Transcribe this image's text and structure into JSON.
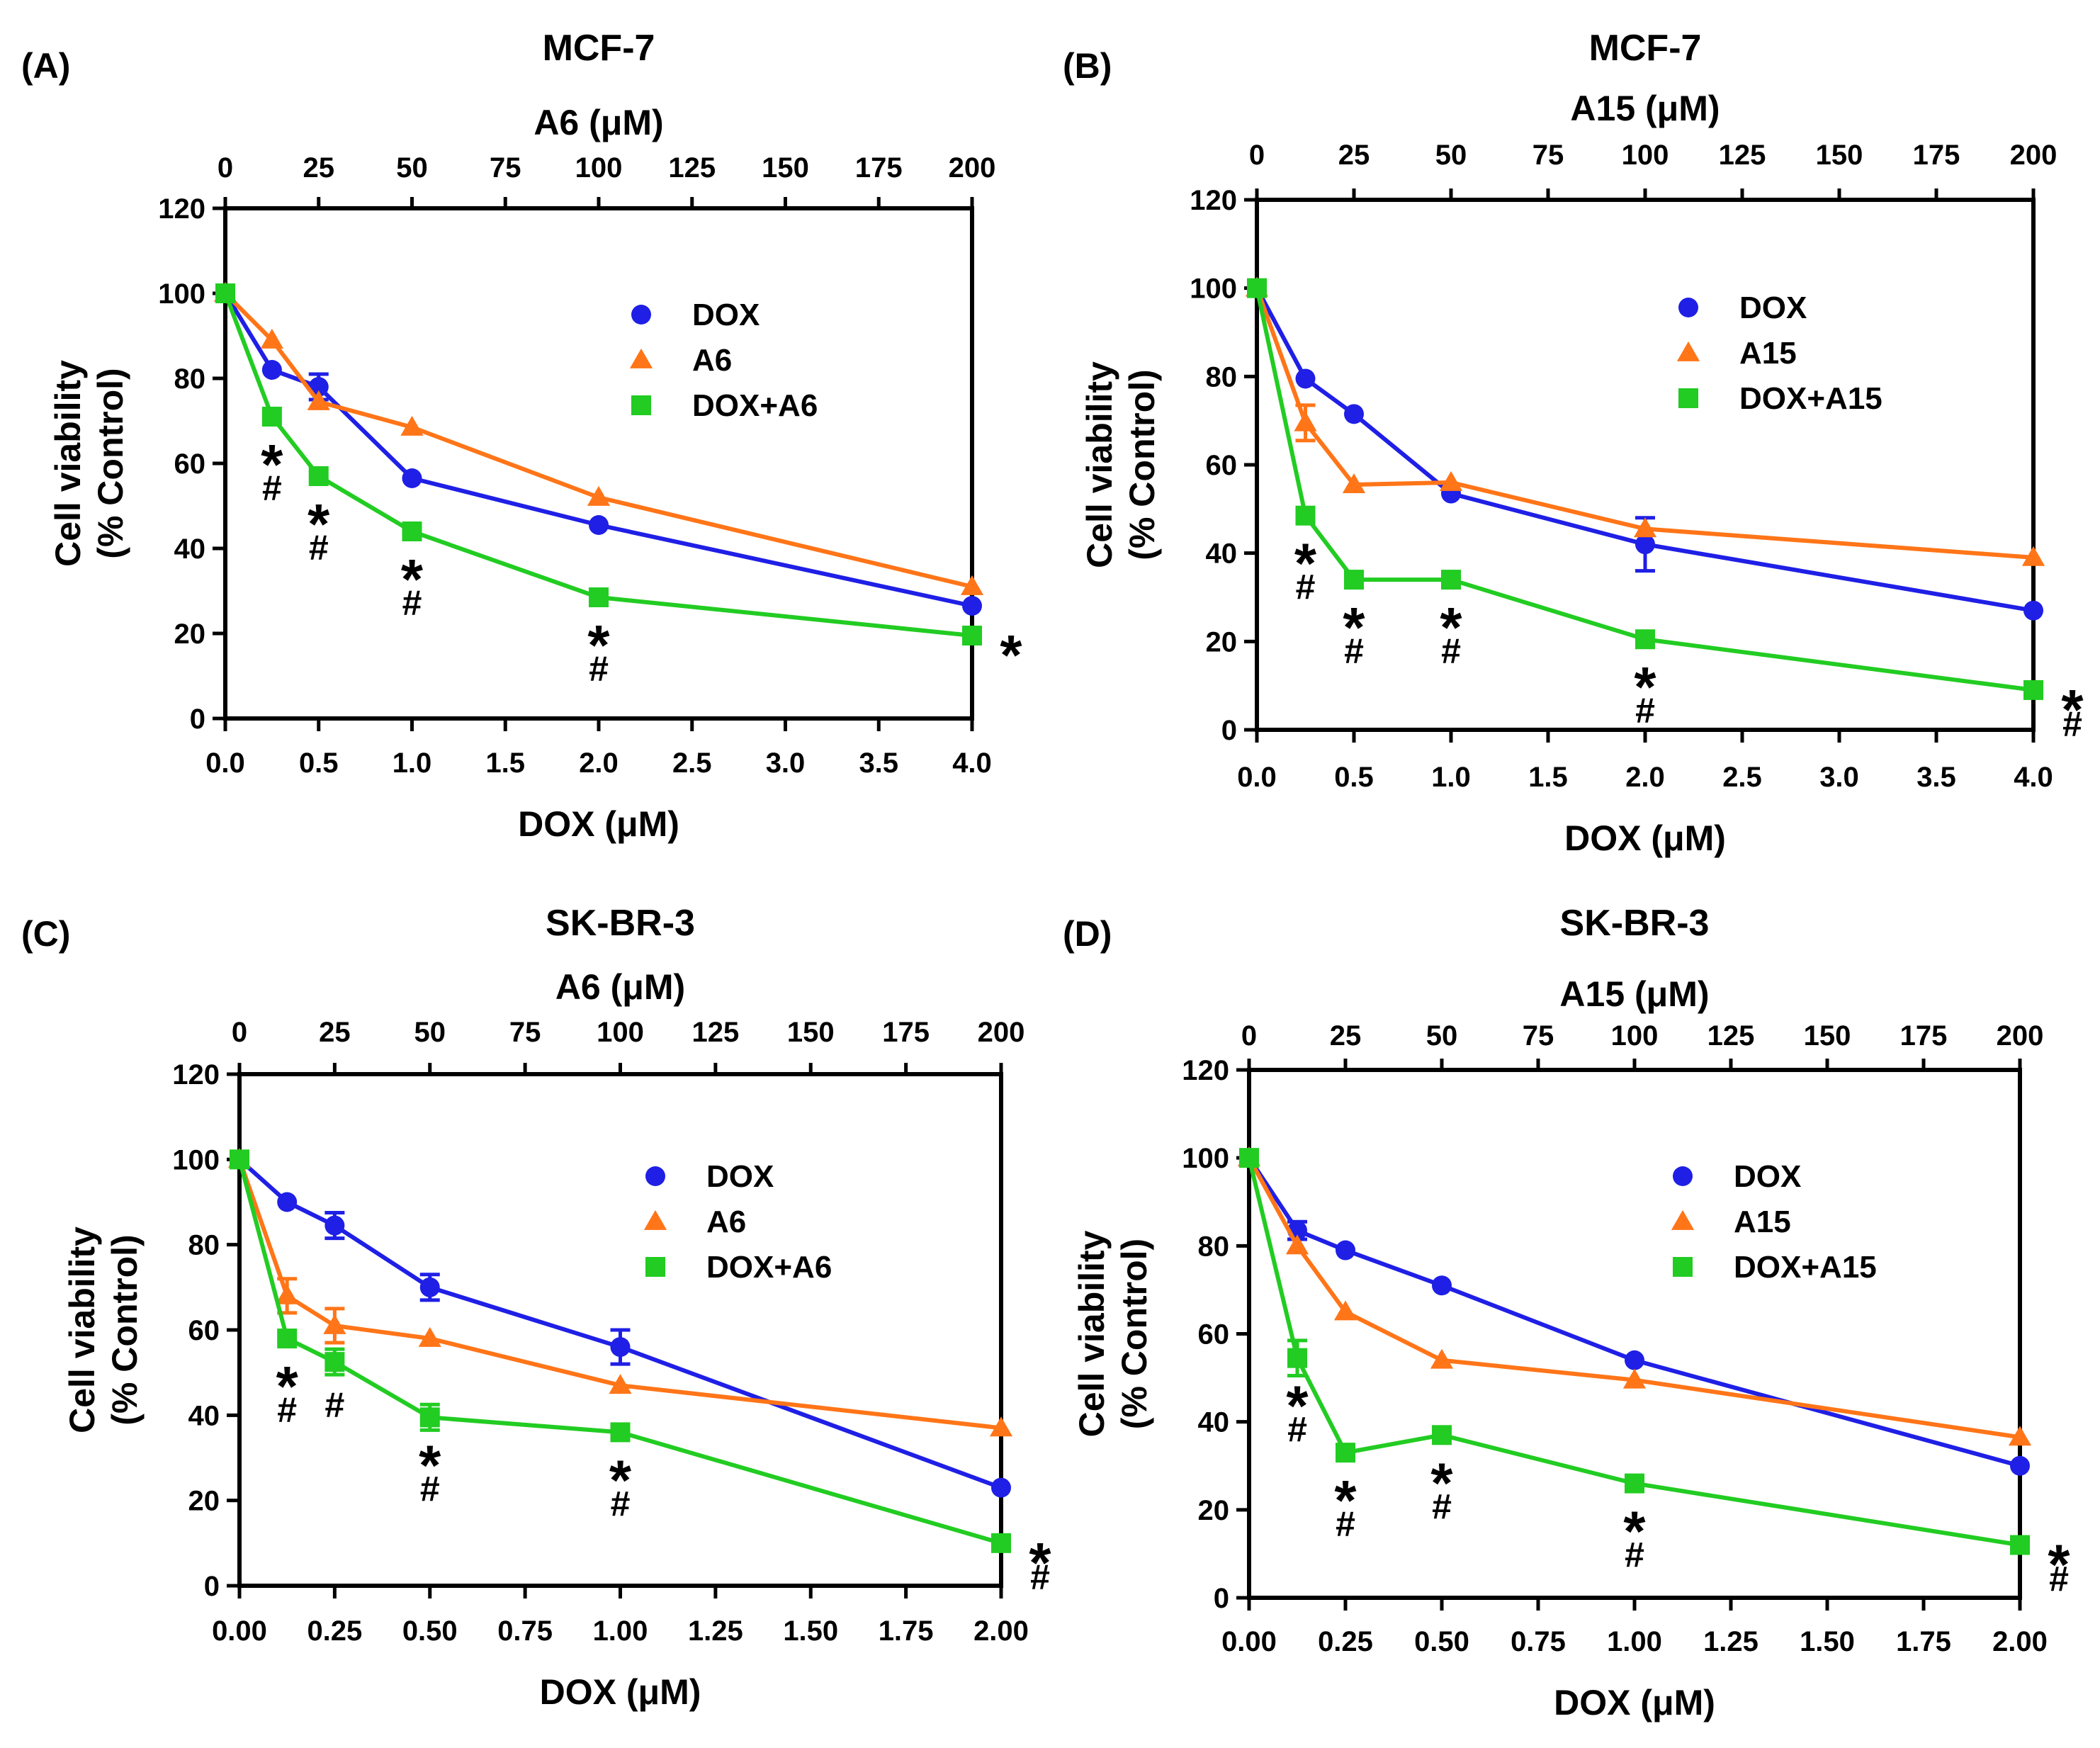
{
  "figure": {
    "colors": {
      "DOX": "#1f1fe6",
      "A6": "#ff7518",
      "A15": "#ff7518",
      "DOX+A6": "#22cc22",
      "DOX+A15": "#22cc22",
      "axis": "#000000"
    }
  },
  "chart_data": [
    {
      "type": "line",
      "panel": "(A)",
      "title": "MCF-7",
      "xlabel": "DOX (μM)",
      "x2label": "A6 (μM)",
      "ylabel": [
        "Cell viability",
        "(% Control)"
      ],
      "x_ticks": [
        "0.0",
        "0.5",
        "1.0",
        "1.5",
        "2.0",
        "2.5",
        "3.0",
        "3.5",
        "4.0"
      ],
      "x_tick_values": [
        0,
        0.5,
        1,
        1.5,
        2,
        2.5,
        3,
        3.5,
        4
      ],
      "x2_ticks": [
        "0",
        "25",
        "50",
        "75",
        "100",
        "125",
        "150",
        "175",
        "200"
      ],
      "y_ticks": [
        "0",
        "20",
        "40",
        "60",
        "80",
        "100",
        "120"
      ],
      "y_tick_values": [
        0,
        20,
        40,
        60,
        80,
        100,
        120
      ],
      "xlim": [
        0,
        4
      ],
      "ylim": [
        0,
        120
      ],
      "x": [
        0,
        0.25,
        0.5,
        1,
        2,
        4
      ],
      "series": [
        {
          "name": "DOX",
          "marker": "circle",
          "values": [
            100,
            82,
            78,
            56.5,
            45.5,
            26.5
          ],
          "errors": [
            0,
            0,
            3,
            0,
            0,
            0
          ]
        },
        {
          "name": "A6",
          "marker": "triangle",
          "values": [
            100,
            89,
            74.5,
            68.5,
            52,
            31
          ],
          "errors": [
            0,
            0,
            0,
            0,
            0,
            0
          ]
        },
        {
          "name": "DOX+A6",
          "marker": "square",
          "values": [
            100,
            71,
            57,
            44,
            28.5,
            19.5
          ],
          "errors": [
            0,
            0,
            0,
            0,
            0,
            0
          ]
        }
      ],
      "annotations": [
        {
          "x": 0.25,
          "y": 71,
          "stars": "*",
          "hash": "#"
        },
        {
          "x": 0.5,
          "y": 57,
          "stars": "*",
          "hash": "#"
        },
        {
          "x": 1,
          "y": 44,
          "stars": "*",
          "hash": "#"
        },
        {
          "x": 2,
          "y": 28.5,
          "stars": "*",
          "hash": "#"
        },
        {
          "x": 4,
          "y": 19.5,
          "stars": "*",
          "hash": "",
          "side": "right"
        }
      ]
    },
    {
      "type": "line",
      "panel": "(B)",
      "title": "MCF-7",
      "xlabel": "DOX (μM)",
      "x2label": "A15 (μM)",
      "ylabel": [
        "Cell viability",
        "(% Control)"
      ],
      "x_ticks": [
        "0.0",
        "0.5",
        "1.0",
        "1.5",
        "2.0",
        "2.5",
        "3.0",
        "3.5",
        "4.0"
      ],
      "x_tick_values": [
        0,
        0.5,
        1,
        1.5,
        2,
        2.5,
        3,
        3.5,
        4
      ],
      "x2_ticks": [
        "0",
        "25",
        "50",
        "75",
        "100",
        "125",
        "150",
        "175",
        "200"
      ],
      "y_ticks": [
        "0",
        "20",
        "40",
        "60",
        "80",
        "100",
        "120"
      ],
      "y_tick_values": [
        0,
        20,
        40,
        60,
        80,
        100,
        120
      ],
      "xlim": [
        0,
        4
      ],
      "ylim": [
        0,
        120
      ],
      "x": [
        0,
        0.25,
        0.5,
        1,
        2,
        4
      ],
      "series": [
        {
          "name": "DOX",
          "marker": "circle",
          "values": [
            100,
            79.5,
            71.5,
            53.5,
            42,
            27
          ],
          "errors": [
            0,
            0,
            0,
            0,
            6,
            0
          ]
        },
        {
          "name": "A15",
          "marker": "triangle",
          "values": [
            100,
            69.5,
            55.5,
            56,
            45.5,
            39
          ],
          "errors": [
            0,
            4,
            0,
            0,
            0,
            0
          ]
        },
        {
          "name": "DOX+A15",
          "marker": "square",
          "values": [
            100,
            48.5,
            34,
            34,
            20.5,
            9
          ],
          "errors": [
            0,
            0,
            0,
            0,
            0,
            0
          ]
        }
      ],
      "annotations": [
        {
          "x": 0.25,
          "y": 48.5,
          "stars": "*",
          "hash": "#"
        },
        {
          "x": 0.5,
          "y": 34,
          "stars": "*",
          "hash": "#"
        },
        {
          "x": 1,
          "y": 34,
          "stars": "*",
          "hash": "#"
        },
        {
          "x": 2,
          "y": 20.5,
          "stars": "*",
          "hash": "#"
        },
        {
          "x": 4,
          "y": 9,
          "stars": "*",
          "hash": "#",
          "side": "right"
        }
      ]
    },
    {
      "type": "line",
      "panel": "(C)",
      "title": "SK-BR-3",
      "xlabel": "DOX (μM)",
      "x2label": "A6 (μM)",
      "ylabel": [
        "Cell viability",
        "(% Control)"
      ],
      "x_ticks": [
        "0.00",
        "0.25",
        "0.50",
        "0.75",
        "1.00",
        "1.25",
        "1.50",
        "1.75",
        "2.00"
      ],
      "x_tick_values": [
        0,
        0.25,
        0.5,
        0.75,
        1,
        1.25,
        1.5,
        1.75,
        2
      ],
      "x2_ticks": [
        "0",
        "25",
        "50",
        "75",
        "100",
        "125",
        "150",
        "175",
        "200"
      ],
      "y_ticks": [
        "0",
        "20",
        "40",
        "60",
        "80",
        "100",
        "120"
      ],
      "y_tick_values": [
        0,
        20,
        40,
        60,
        80,
        100,
        120
      ],
      "xlim": [
        0,
        2
      ],
      "ylim": [
        0,
        120
      ],
      "x": [
        0,
        0.125,
        0.25,
        0.5,
        1,
        2
      ],
      "series": [
        {
          "name": "DOX",
          "marker": "circle",
          "values": [
            100,
            90,
            84.5,
            70,
            56,
            23
          ],
          "errors": [
            0,
            0,
            3,
            3,
            4,
            0
          ]
        },
        {
          "name": "A6",
          "marker": "triangle",
          "values": [
            100,
            68,
            61,
            58,
            47,
            37
          ],
          "errors": [
            0,
            4,
            4,
            0,
            0,
            0
          ]
        },
        {
          "name": "DOX+A6",
          "marker": "square",
          "values": [
            100,
            58,
            52.5,
            39.5,
            36,
            10
          ],
          "errors": [
            0,
            0,
            3,
            3,
            0,
            0
          ]
        }
      ],
      "annotations": [
        {
          "x": 0.125,
          "y": 58,
          "stars": "*",
          "hash": "#"
        },
        {
          "x": 0.25,
          "y": 52.5,
          "stars": "",
          "hash": "#"
        },
        {
          "x": 0.5,
          "y": 39.5,
          "stars": "*",
          "hash": "#"
        },
        {
          "x": 1,
          "y": 36,
          "stars": "*",
          "hash": "#"
        },
        {
          "x": 2,
          "y": 10,
          "stars": "*",
          "hash": "#",
          "side": "right"
        }
      ]
    },
    {
      "type": "line",
      "panel": "(D)",
      "title": "SK-BR-3",
      "xlabel": "DOX (μM)",
      "x2label": "A15 (μM)",
      "ylabel": [
        "Cell viability",
        "(% Control)"
      ],
      "x_ticks": [
        "0.00",
        "0.25",
        "0.50",
        "0.75",
        "1.00",
        "1.25",
        "1.50",
        "1.75",
        "2.00"
      ],
      "x_tick_values": [
        0,
        0.25,
        0.5,
        0.75,
        1,
        1.25,
        1.5,
        1.75,
        2
      ],
      "x2_ticks": [
        "0",
        "25",
        "50",
        "75",
        "100",
        "125",
        "150",
        "175",
        "200"
      ],
      "y_ticks": [
        "0",
        "20",
        "40",
        "60",
        "80",
        "100",
        "120"
      ],
      "y_tick_values": [
        0,
        20,
        40,
        60,
        80,
        100,
        120
      ],
      "xlim": [
        0,
        2
      ],
      "ylim": [
        0,
        120
      ],
      "x": [
        0,
        0.125,
        0.25,
        0.5,
        1,
        2
      ],
      "series": [
        {
          "name": "DOX",
          "marker": "circle",
          "values": [
            100,
            83.5,
            79,
            71,
            54,
            30
          ],
          "errors": [
            0,
            2,
            0,
            0,
            0,
            0
          ]
        },
        {
          "name": "A15",
          "marker": "triangle",
          "values": [
            100,
            80,
            65,
            54,
            49.5,
            36.5
          ],
          "errors": [
            0,
            0,
            0,
            0,
            0,
            0
          ]
        },
        {
          "name": "DOX+A15",
          "marker": "square",
          "values": [
            100,
            54.5,
            33,
            37,
            26,
            12
          ],
          "errors": [
            0,
            4,
            0,
            0,
            0,
            0
          ]
        }
      ],
      "annotations": [
        {
          "x": 0.125,
          "y": 54.5,
          "stars": "*",
          "hash": "#"
        },
        {
          "x": 0.25,
          "y": 33,
          "stars": "*",
          "hash": "#"
        },
        {
          "x": 0.5,
          "y": 37,
          "stars": "*",
          "hash": "#"
        },
        {
          "x": 1,
          "y": 26,
          "stars": "*",
          "hash": "#"
        },
        {
          "x": 2,
          "y": 12,
          "stars": "*",
          "hash": "#",
          "side": "right"
        }
      ]
    }
  ]
}
